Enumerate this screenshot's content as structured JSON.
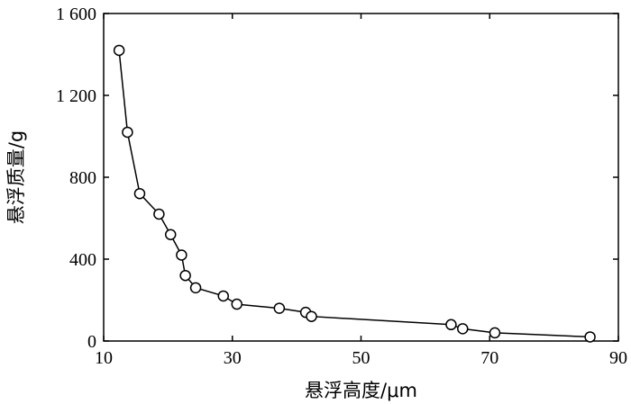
{
  "chart_data": {
    "type": "line",
    "title": "",
    "xlabel": "悬浮高度/μm",
    "ylabel": "悬浮质量/g",
    "xlim": [
      10,
      90
    ],
    "ylim": [
      0,
      1600
    ],
    "xticks": [
      10,
      30,
      50,
      70,
      90
    ],
    "yticks": [
      0,
      400,
      800,
      1200,
      1600
    ],
    "xtick_labels": [
      "10",
      "30",
      "50",
      "70",
      "90"
    ],
    "ytick_labels": [
      "0",
      "400",
      "800",
      "1 200",
      "1 600"
    ],
    "grid": false,
    "legend": "none",
    "marker": "open-circle",
    "series": [
      {
        "x": [
          12.4,
          13.7,
          15.6,
          18.6,
          20.4,
          22.1,
          22.7,
          24.3,
          28.6,
          30.7,
          37.3,
          41.4,
          42.3,
          64.0,
          65.8,
          70.8,
          85.6
        ],
        "y": [
          1420,
          1020,
          720,
          620,
          520,
          420,
          320,
          260,
          220,
          180,
          160,
          140,
          120,
          80,
          60,
          40,
          20
        ]
      }
    ]
  }
}
